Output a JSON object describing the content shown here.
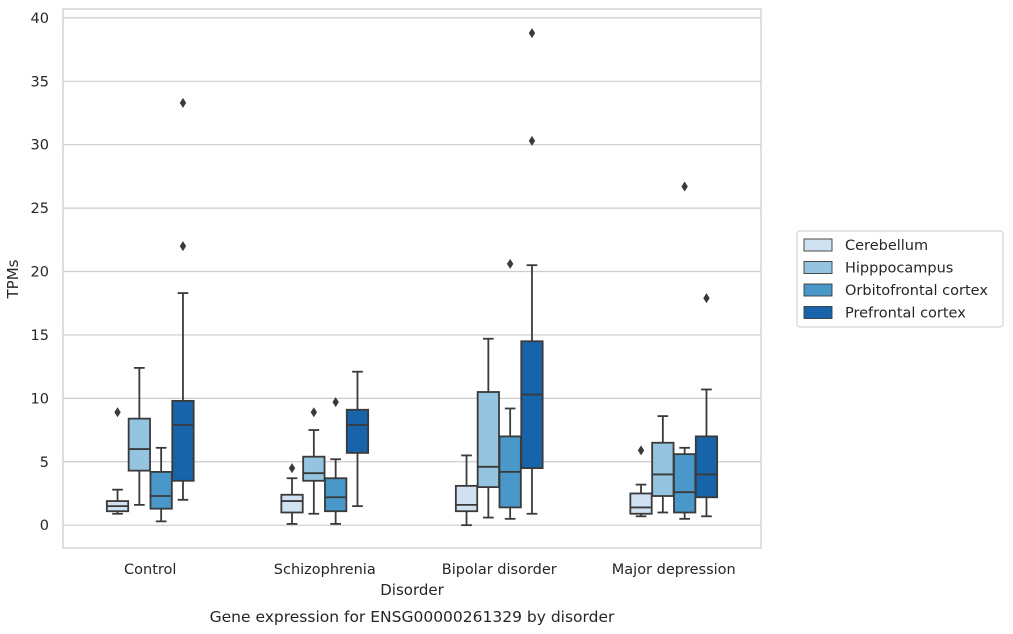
{
  "chart_data": {
    "type": "box",
    "title": "Gene expression for ENSG00000261329 by disorder",
    "xlabel": "Disorder",
    "ylabel": "TPMs",
    "categories": [
      "Control",
      "Schizophrenia",
      "Bipolar disorder",
      "Major depression"
    ],
    "ylim": [
      -1.8,
      40.7
    ],
    "yticks": [
      0,
      5,
      10,
      15,
      20,
      25,
      30,
      35,
      40
    ],
    "grid": true,
    "legend_position": "center-right",
    "series": [
      {
        "name": "Cerebellum",
        "color": "#d0e1f2",
        "boxes": [
          {
            "whislo": 0.9,
            "q1": 1.1,
            "med": 1.5,
            "q3": 1.9,
            "whishi": 2.8,
            "fliers": [
              8.9
            ]
          },
          {
            "whislo": 0.1,
            "q1": 1.0,
            "med": 1.9,
            "q3": 2.4,
            "whishi": 3.7,
            "fliers": [
              4.5
            ]
          },
          {
            "whislo": 0.0,
            "q1": 1.1,
            "med": 1.6,
            "q3": 3.1,
            "whishi": 5.5,
            "fliers": []
          },
          {
            "whislo": 0.7,
            "q1": 0.9,
            "med": 1.4,
            "q3": 2.5,
            "whishi": 3.2,
            "fliers": [
              5.9
            ]
          }
        ]
      },
      {
        "name": "Hipppocampus",
        "color": "#94c4df",
        "boxes": [
          {
            "whislo": 1.6,
            "q1": 4.3,
            "med": 6.0,
            "q3": 8.4,
            "whishi": 12.4,
            "fliers": []
          },
          {
            "whislo": 0.9,
            "q1": 3.5,
            "med": 4.1,
            "q3": 5.4,
            "whishi": 7.5,
            "fliers": [
              8.9
            ]
          },
          {
            "whislo": 0.6,
            "q1": 3.0,
            "med": 4.6,
            "q3": 10.5,
            "whishi": 14.7,
            "fliers": []
          },
          {
            "whislo": 1.0,
            "q1": 2.3,
            "med": 4.0,
            "q3": 6.5,
            "whishi": 8.6,
            "fliers": []
          }
        ]
      },
      {
        "name": "Orbitofrontal cortex",
        "color": "#4a98c9",
        "boxes": [
          {
            "whislo": 0.3,
            "q1": 1.3,
            "med": 2.3,
            "q3": 4.2,
            "whishi": 6.1,
            "fliers": []
          },
          {
            "whislo": 0.1,
            "q1": 1.1,
            "med": 2.2,
            "q3": 3.7,
            "whishi": 5.2,
            "fliers": [
              9.7
            ]
          },
          {
            "whislo": 0.5,
            "q1": 1.4,
            "med": 4.2,
            "q3": 7.0,
            "whishi": 9.2,
            "fliers": [
              20.6
            ]
          },
          {
            "whislo": 0.5,
            "q1": 1.0,
            "med": 2.6,
            "q3": 5.6,
            "whishi": 6.1,
            "fliers": [
              26.7
            ]
          }
        ]
      },
      {
        "name": "Prefrontal cortex",
        "color": "#1764ab",
        "boxes": [
          {
            "whislo": 2.0,
            "q1": 3.5,
            "med": 7.9,
            "q3": 9.8,
            "whishi": 18.3,
            "fliers": [
              22.0,
              33.3
            ]
          },
          {
            "whislo": 1.5,
            "q1": 5.7,
            "med": 7.9,
            "q3": 9.1,
            "whishi": 12.1,
            "fliers": []
          },
          {
            "whislo": 0.9,
            "q1": 4.5,
            "med": 10.3,
            "q3": 14.5,
            "whishi": 20.5,
            "fliers": [
              30.3,
              38.8
            ]
          },
          {
            "whislo": 0.7,
            "q1": 2.2,
            "med": 4.0,
            "q3": 7.0,
            "whishi": 10.7,
            "fliers": [
              17.9
            ]
          }
        ]
      }
    ]
  }
}
